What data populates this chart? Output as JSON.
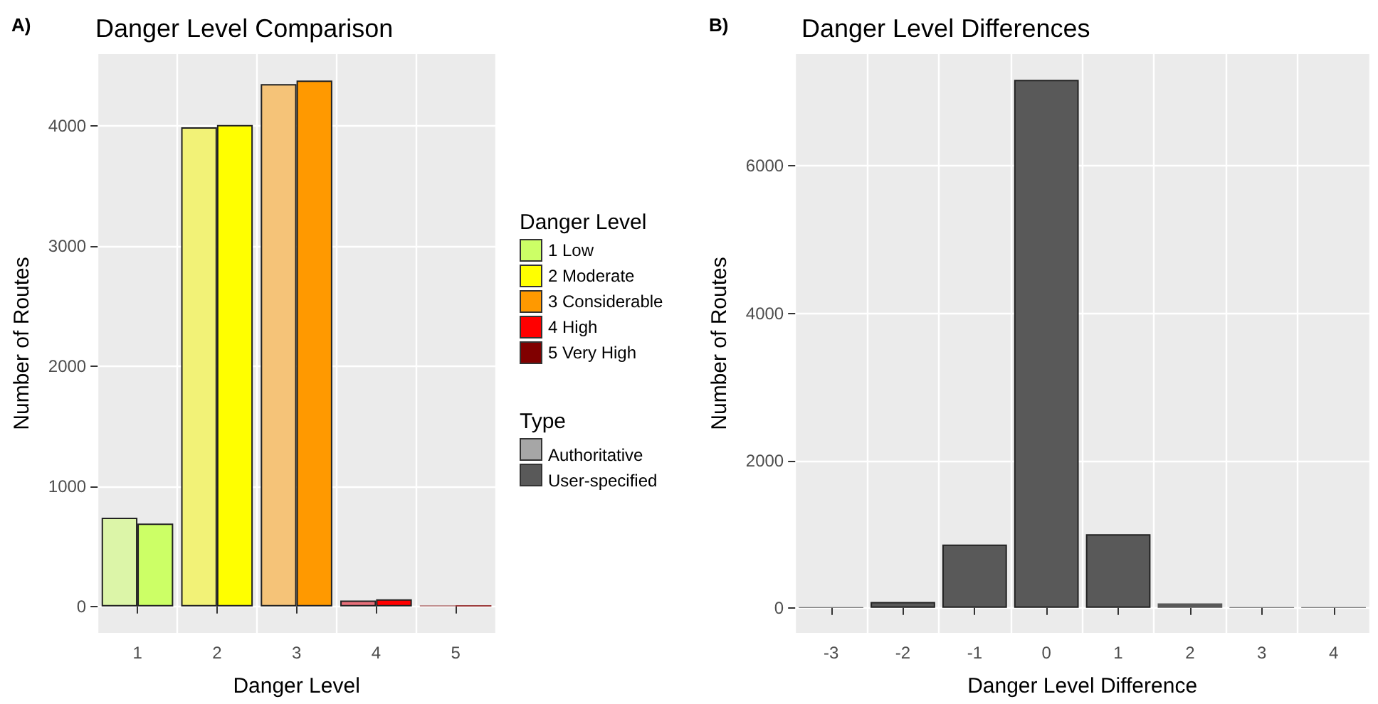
{
  "chart_data": [
    {
      "type": "bar",
      "title": "Danger Level Comparison",
      "xlabel": "Danger Level",
      "ylabel": "Number of Routes",
      "legend_title": "Type",
      "annotations": [
        "A)",
        "Danger Level",
        "1 Low",
        "2 Moderate",
        "3 Considerable",
        "4 High",
        "5 Very High"
      ],
      "categories": [
        "1",
        "2",
        "3",
        "4",
        "5"
      ],
      "series": [
        {
          "name": "Authoritative",
          "color": "#a6a6a6",
          "colors": [
            "#dcf5a8",
            "#f2f277",
            "#f5c378",
            "#e8707a",
            "#b07070"
          ],
          "values": [
            740,
            3990,
            4350,
            50,
            10
          ]
        },
        {
          "name": "User-specified",
          "color": "#595959",
          "colors": [
            "#ccff66",
            "#ffff00",
            "#ff9900",
            "#ff0000",
            "#800000"
          ],
          "values": [
            690,
            4010,
            4380,
            60,
            10
          ]
        }
      ],
      "ylim": [
        -220,
        4600
      ],
      "yticks": [
        0,
        1000,
        2000,
        3000,
        4000
      ],
      "grid": true,
      "legend": "right"
    },
    {
      "type": "bar",
      "title": "Danger Level Differences",
      "xlabel": "Danger Level Difference",
      "ylabel": "Number of Routes",
      "annotations": [
        "B)"
      ],
      "categories": [
        "-3",
        "-2",
        "-1",
        "0",
        "1",
        "2",
        "3",
        "4"
      ],
      "values": [
        10,
        80,
        860,
        7170,
        1000,
        60,
        10,
        10
      ],
      "color": "#595959",
      "ylim": [
        -340,
        7520
      ],
      "yticks": [
        0,
        2000,
        4000,
        6000
      ],
      "grid": true
    }
  ]
}
